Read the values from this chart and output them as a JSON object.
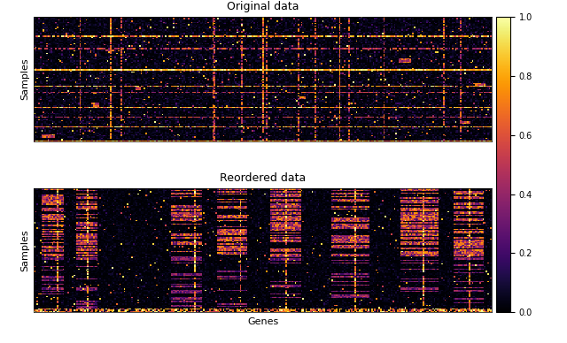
{
  "title_top": "Original data",
  "title_bottom": "Reordered data",
  "xlabel": "Genes",
  "ylabel": "Samples",
  "colormap": "inferno",
  "vmin": 0.0,
  "vmax": 1.0,
  "n_rows": 100,
  "n_cols": 300,
  "seed": 7,
  "colorbar_ticks": [
    1.0,
    0.8,
    0.6,
    0.4,
    0.2,
    0.0
  ],
  "colorbar_ticklabels": [
    "1.0",
    "0.8",
    "0.6",
    "0.4",
    "0.2",
    "0.0"
  ],
  "figsize": [
    6.4,
    3.88
  ],
  "dpi": 100
}
